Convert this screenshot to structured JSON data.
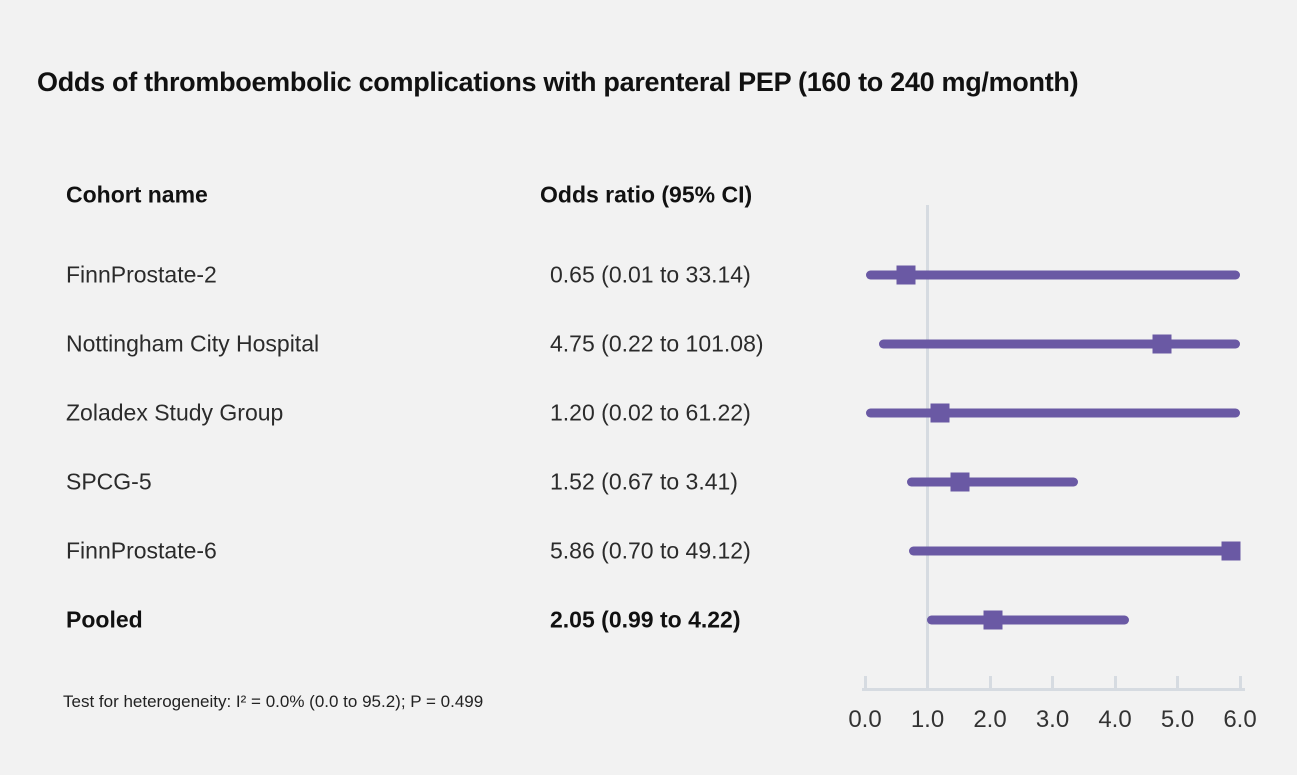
{
  "title": "Odds of thromboembolic complications with parenteral PEP (160 to 240 mg/month)",
  "table": {
    "cohort_header": "Cohort name",
    "or_header": "Odds ratio (95% CI)"
  },
  "footnote": "Test for heterogeneity: I² = 0.0% (0.0 to 95.2); P = 0.499",
  "colors": {
    "accent": "#6a59a4",
    "axis": "#d6dbe1",
    "background": "#f2f2f2",
    "text": "#111111"
  },
  "chart_data": {
    "type": "forest",
    "title": "Odds of thromboembolic complications with parenteral PEP (160 to 240 mg/month)",
    "xlabel": "Odds ratio",
    "xlim": [
      0.0,
      6.0
    ],
    "xtick_values": [
      0.0,
      1.0,
      2.0,
      3.0,
      4.0,
      5.0,
      6.0
    ],
    "xtick_labels": [
      "0.0",
      "1.0",
      "2.0",
      "3.0",
      "4.0",
      "5.0",
      "6.0"
    ],
    "reference_line": 1.0,
    "rows": [
      {
        "cohort": "FinnProstate-2",
        "or_label": "0.65 (0.01 to 33.14)",
        "or": 0.65,
        "ci_low": 0.01,
        "ci_high": 33.14,
        "bold": false
      },
      {
        "cohort": "Nottingham City Hospital",
        "or_label": "4.75 (0.22 to 101.08)",
        "or": 4.75,
        "ci_low": 0.22,
        "ci_high": 101.08,
        "bold": false
      },
      {
        "cohort": "Zoladex Study Group",
        "or_label": "1.20 (0.02 to 61.22)",
        "or": 1.2,
        "ci_low": 0.02,
        "ci_high": 61.22,
        "bold": false
      },
      {
        "cohort": "SPCG-5",
        "or_label": "1.52 (0.67 to 3.41)",
        "or": 1.52,
        "ci_low": 0.67,
        "ci_high": 3.41,
        "bold": false
      },
      {
        "cohort": "FinnProstate-6",
        "or_label": "5.86 (0.70 to 49.12)",
        "or": 5.86,
        "ci_low": 0.7,
        "ci_high": 49.12,
        "bold": false
      },
      {
        "cohort": "Pooled",
        "or_label": "2.05 (0.99 to 4.22)",
        "or": 2.05,
        "ci_low": 0.99,
        "ci_high": 4.22,
        "bold": true
      }
    ],
    "heterogeneity_note": "Test for heterogeneity: I² = 0.0% (0.0 to 95.2); P = 0.499"
  }
}
